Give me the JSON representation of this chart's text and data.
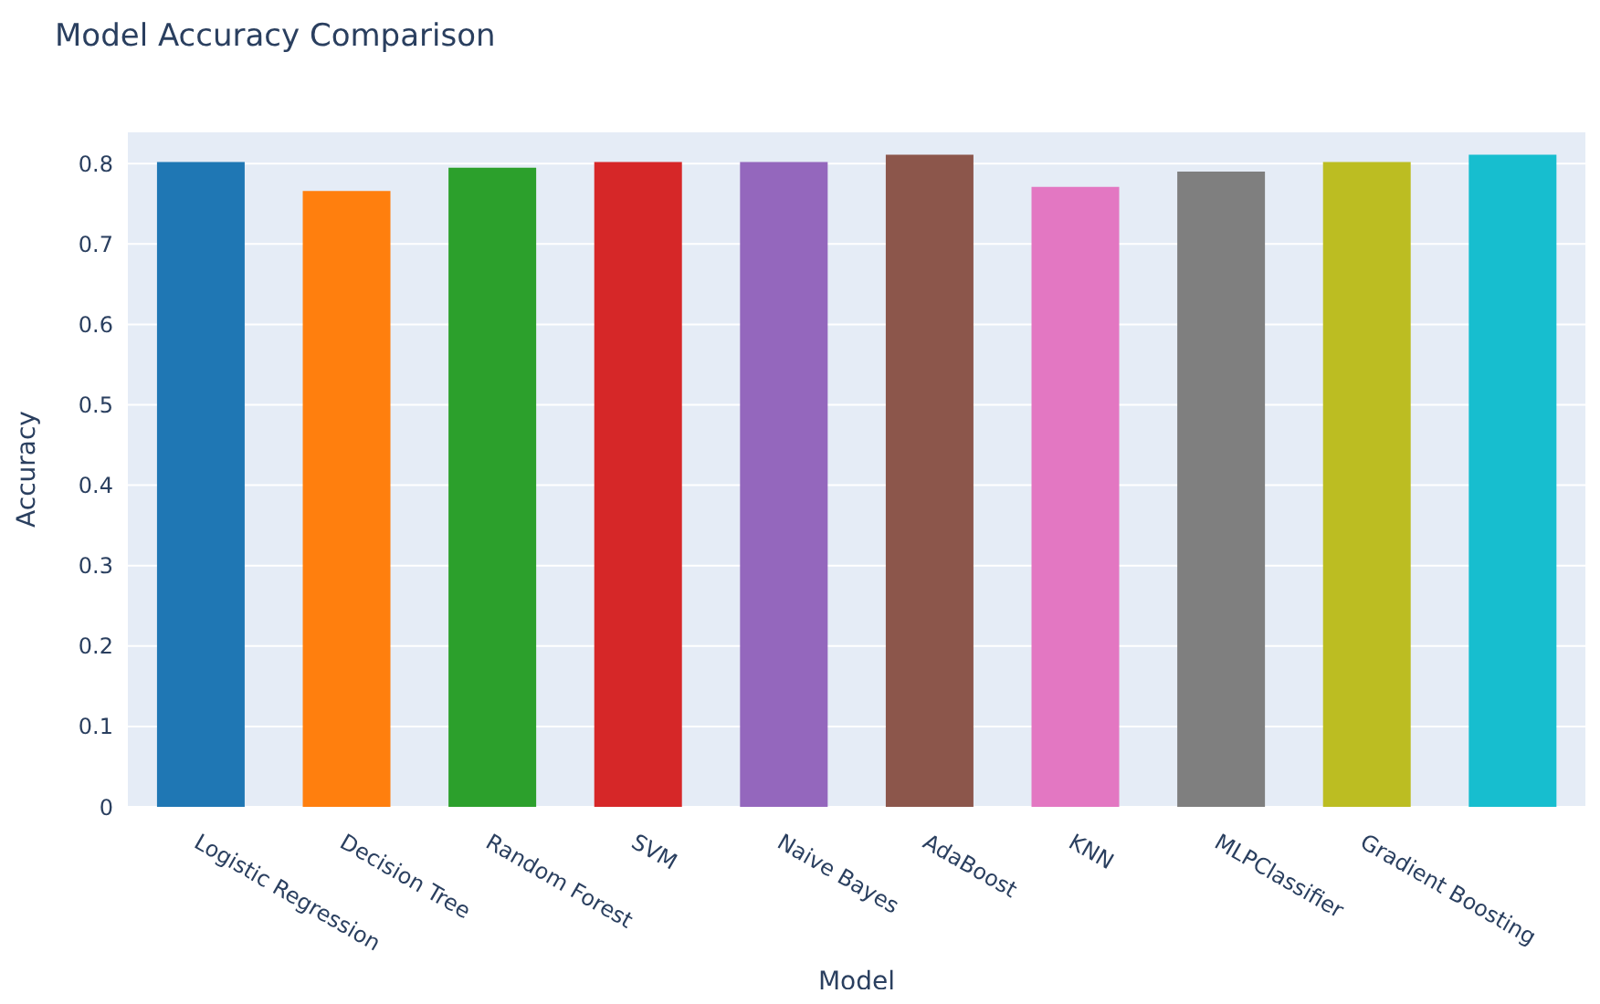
{
  "chart_data": {
    "type": "bar",
    "title": "Model Accuracy Comparison",
    "xlabel": "Model",
    "ylabel": "Accuracy",
    "categories": [
      "Logistic Regression",
      "Decision Tree",
      "Random Forest",
      "SVM",
      "Naive Bayes",
      "AdaBoost",
      "KNN",
      "MLPClassifier",
      "Gradient Boosting",
      null
    ],
    "values": [
      0.802,
      0.766,
      0.795,
      0.802,
      0.802,
      0.811,
      0.771,
      0.79,
      0.802,
      0.811
    ],
    "colors": [
      "#1f77b4",
      "#ff7f0e",
      "#2ca02c",
      "#d62728",
      "#9467bd",
      "#8c564b",
      "#e377c2",
      "#7f7f7f",
      "#bcbd22",
      "#17becf"
    ],
    "ylim": [
      0,
      0.84
    ],
    "yticks": [
      0,
      0.1,
      0.2,
      0.3,
      0.4,
      0.5,
      0.6,
      0.7,
      0.8
    ],
    "grid": "y",
    "legend": false
  }
}
